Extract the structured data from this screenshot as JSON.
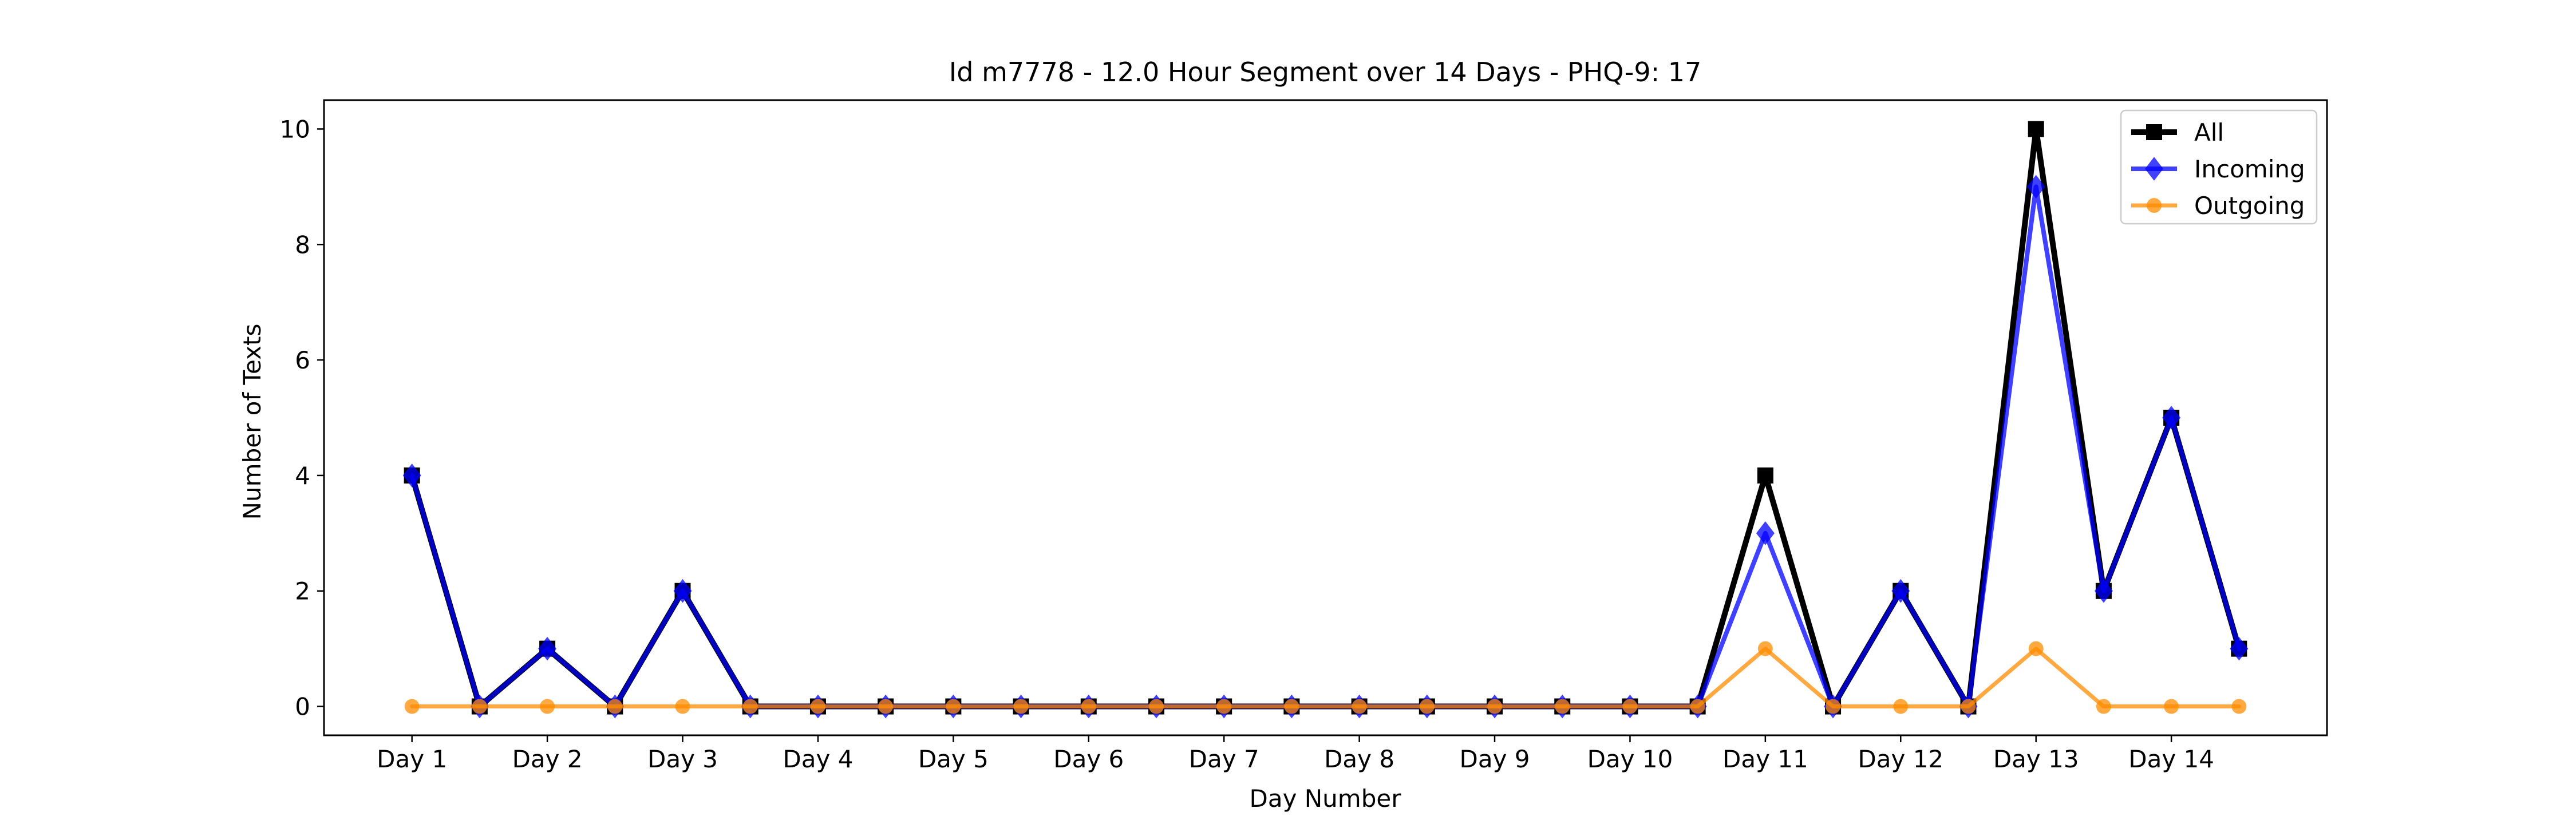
{
  "chart_data": {
    "type": "line",
    "title": "Id m7778 - 12.0 Hour Segment over 14 Days - PHQ-9: 17",
    "xlabel": "Day Number",
    "ylabel": "Number of Texts",
    "categories": [
      "Day 1",
      "Day 2",
      "Day 3",
      "Day 4",
      "Day 5",
      "Day 6",
      "Day 7",
      "Day 8",
      "Day 9",
      "Day 10",
      "Day 11",
      "Day 12",
      "Day 13",
      "Day 14"
    ],
    "x": [
      1,
      1.5,
      2,
      2.5,
      3,
      3.5,
      4,
      4.5,
      5,
      5.5,
      6,
      6.5,
      7,
      7.5,
      8,
      8.5,
      9,
      9.5,
      10,
      10.5,
      11,
      11.5,
      12,
      12.5,
      13,
      13.5,
      14,
      14.5
    ],
    "xlim": [
      0.35,
      15.15
    ],
    "ylim": [
      -0.5,
      10.5
    ],
    "y_ticks": [
      0,
      2,
      4,
      6,
      8,
      10
    ],
    "legend_position": "top-right",
    "grid": false,
    "series": [
      {
        "name": "All",
        "color": "#000000",
        "marker": "square",
        "values": [
          4,
          0,
          1,
          0,
          2,
          0,
          0,
          0,
          0,
          0,
          0,
          0,
          0,
          0,
          0,
          0,
          0,
          0,
          0,
          0,
          4,
          0,
          2,
          0,
          10,
          2,
          5,
          1
        ]
      },
      {
        "name": "Incoming",
        "color": "#0000ff",
        "marker": "diamond",
        "values": [
          4,
          0,
          1,
          0,
          2,
          0,
          0,
          0,
          0,
          0,
          0,
          0,
          0,
          0,
          0,
          0,
          0,
          0,
          0,
          0,
          3,
          0,
          2,
          0,
          9,
          2,
          5,
          1
        ]
      },
      {
        "name": "Outgoing",
        "color": "#ff8c00",
        "marker": "circle",
        "values": [
          0,
          0,
          0,
          0,
          0,
          0,
          0,
          0,
          0,
          0,
          0,
          0,
          0,
          0,
          0,
          0,
          0,
          0,
          0,
          0,
          1,
          0,
          0,
          0,
          1,
          0,
          0,
          0
        ]
      }
    ]
  }
}
